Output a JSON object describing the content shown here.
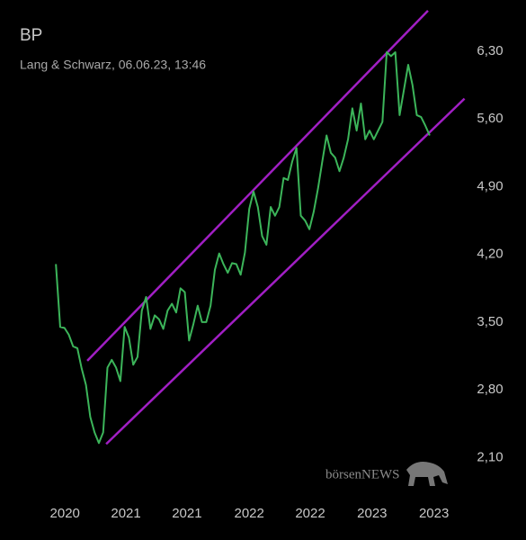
{
  "chart_data": {
    "type": "line",
    "title": "BP",
    "subtitle": "Lang & Schwarz, 06.06.23, 13:46",
    "watermark": "börsenNEWS",
    "series": [
      {
        "color": "#3cb55a",
        "values": [
          4.1,
          3.45,
          3.44,
          3.37,
          3.25,
          3.23,
          3.02,
          2.85,
          2.52,
          2.36,
          2.25,
          2.36,
          3.03,
          3.11,
          3.03,
          2.89,
          3.45,
          3.34,
          3.06,
          3.14,
          3.62,
          3.76,
          3.43,
          3.57,
          3.53,
          3.43,
          3.62,
          3.69,
          3.6,
          3.85,
          3.81,
          3.31,
          3.48,
          3.67,
          3.5,
          3.5,
          3.67,
          4.04,
          4.21,
          4.1,
          4.01,
          4.11,
          4.1,
          3.99,
          4.22,
          4.67,
          4.85,
          4.69,
          4.39,
          4.3,
          4.69,
          4.6,
          4.69,
          4.99,
          4.97,
          5.16,
          5.3,
          4.6,
          4.55,
          4.46,
          4.64,
          4.88,
          5.16,
          5.43,
          5.25,
          5.2,
          5.06,
          5.2,
          5.39,
          5.71,
          5.48,
          5.76,
          5.39,
          5.48,
          5.39,
          5.48,
          5.57,
          6.29,
          6.25,
          6.29,
          5.64,
          5.9,
          6.16,
          5.95,
          5.64,
          5.62,
          5.53,
          5.43
        ]
      }
    ],
    "channels": [
      {
        "color": "#a11fc4",
        "x": [
          7.3,
          86.6
        ],
        "values": [
          3.1,
          6.72
        ]
      },
      {
        "color": "#a11fc4",
        "x": [
          11.7,
          95.1
        ],
        "values": [
          2.24,
          5.81
        ]
      }
    ],
    "xlim": [
      -10.5,
      100
    ],
    "xticks": [
      {
        "value": 2.1,
        "label": "2020"
      },
      {
        "value": 16.3,
        "label": "2021"
      },
      {
        "value": 30.5,
        "label": "2021"
      },
      {
        "value": 45.0,
        "label": "2022"
      },
      {
        "value": 59.2,
        "label": "2022"
      },
      {
        "value": 73.6,
        "label": "2023"
      },
      {
        "value": 88.0,
        "label": "2023"
      }
    ],
    "ylim": [
      1.62,
      6.83
    ],
    "yticks": [
      {
        "value": 2.1,
        "label": "2,10"
      },
      {
        "value": 2.8,
        "label": "2,80"
      },
      {
        "value": 3.5,
        "label": "3,50"
      },
      {
        "value": 4.2,
        "label": "4,20"
      },
      {
        "value": 4.9,
        "label": "4,90"
      },
      {
        "value": 5.6,
        "label": "5,60"
      },
      {
        "value": 6.3,
        "label": "6,30"
      }
    ]
  }
}
